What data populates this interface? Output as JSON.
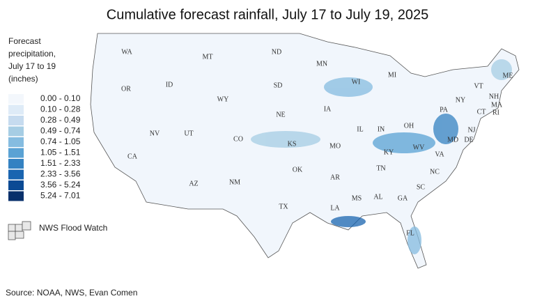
{
  "title": "Cumulative forecast rainfall, July 17 to July 19, 2025",
  "legend": {
    "title": [
      "Forecast",
      "precipitation,",
      "July 17 to 19",
      "(inches)"
    ],
    "items": [
      {
        "label": "0.00 - 0.10",
        "color": "#f3f7fc"
      },
      {
        "label": "0.10 - 0.28",
        "color": "#deebf7"
      },
      {
        "label": "0.28 - 0.49",
        "color": "#c6dbef"
      },
      {
        "label": "0.49 - 0.74",
        "color": "#a6cde4"
      },
      {
        "label": "0.74 - 1.05",
        "color": "#85bce0"
      },
      {
        "label": "1.05 - 1.51",
        "color": "#5aa2d4"
      },
      {
        "label": "1.51 - 2.33",
        "color": "#3482c2"
      },
      {
        "label": "2.33 - 3.56",
        "color": "#1a65b0"
      },
      {
        "label": "3.56 - 5.24",
        "color": "#0b4a94"
      },
      {
        "label": "5.24 - 7.01",
        "color": "#08306b"
      }
    ],
    "flood_watch": "NWS Flood Watch"
  },
  "states": [
    "WA",
    "OR",
    "CA",
    "NV",
    "ID",
    "MT",
    "WY",
    "UT",
    "AZ",
    "CO",
    "NM",
    "ND",
    "SD",
    "NE",
    "KS",
    "OK",
    "TX",
    "MN",
    "IA",
    "MO",
    "AR",
    "LA",
    "WI",
    "IL",
    "MS",
    "MI",
    "IN",
    "KY",
    "TN",
    "AL",
    "GA",
    "FL",
    "OH",
    "WV",
    "VA",
    "NC",
    "SC",
    "PA",
    "NY",
    "MD",
    "DE",
    "NJ",
    "CT",
    "RI",
    "MA",
    "NH",
    "VT",
    "ME"
  ],
  "source": "Source: NOAA, NWS, Evan Comen"
}
